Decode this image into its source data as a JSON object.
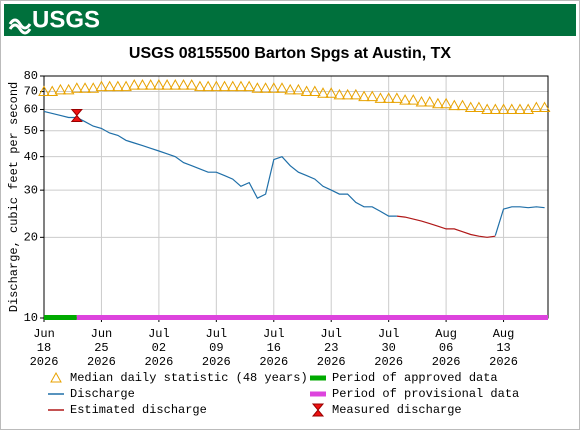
{
  "logo": "USGS",
  "chart_data": {
    "type": "line",
    "title": "USGS 08155500 Barton Spgs at Austin, TX",
    "y_label": "Discharge, cubic feet per second",
    "log_y": true,
    "grid": true,
    "ylim": [
      10,
      80
    ],
    "yticks": [
      10,
      20,
      30,
      40,
      50,
      60,
      70,
      80
    ],
    "xlim": [
      "2026-06-18",
      "2026-08-18T10:00"
    ],
    "xticks": [
      {
        "value": "2026-06-18",
        "label": "Jun 18 2026"
      },
      {
        "value": "2026-06-25",
        "label": "Jun 25 2026"
      },
      {
        "value": "2026-07-02",
        "label": "Jul 02 2026"
      },
      {
        "value": "2026-07-09",
        "label": "Jul 09 2026"
      },
      {
        "value": "2026-07-16",
        "label": "Jul 16 2026"
      },
      {
        "value": "2026-07-23",
        "label": "Jul 23 2026"
      },
      {
        "value": "2026-07-30",
        "label": "Jul 30 2026"
      },
      {
        "value": "2026-08-06",
        "label": "Aug 06 2026"
      },
      {
        "value": "2026-08-13",
        "label": "Aug 13 2026"
      }
    ],
    "x": [
      "2026-06-18",
      "2026-06-19",
      "2026-06-20",
      "2026-06-21",
      "2026-06-22",
      "2026-06-23",
      "2026-06-24",
      "2026-06-25",
      "2026-06-26",
      "2026-06-27",
      "2026-06-28",
      "2026-06-29",
      "2026-06-30",
      "2026-07-01",
      "2026-07-02",
      "2026-07-03",
      "2026-07-04",
      "2026-07-05",
      "2026-07-06",
      "2026-07-07",
      "2026-07-08",
      "2026-07-09",
      "2026-07-10",
      "2026-07-11",
      "2026-07-12",
      "2026-07-13",
      "2026-07-14",
      "2026-07-15",
      "2026-07-16",
      "2026-07-17",
      "2026-07-18",
      "2026-07-19",
      "2026-07-20",
      "2026-07-21",
      "2026-07-22",
      "2026-07-23",
      "2026-07-24",
      "2026-07-25",
      "2026-07-26",
      "2026-07-27",
      "2026-07-28",
      "2026-07-29",
      "2026-07-30",
      "2026-07-31",
      "2026-08-01",
      "2026-08-02",
      "2026-08-03",
      "2026-08-04",
      "2026-08-05",
      "2026-08-06",
      "2026-08-07",
      "2026-08-08",
      "2026-08-09",
      "2026-08-10",
      "2026-08-11",
      "2026-08-12",
      "2026-08-13",
      "2026-08-14",
      "2026-08-15",
      "2026-08-16",
      "2026-08-17",
      "2026-08-18"
    ],
    "series": [
      {
        "name": "Median daily statistic (48 years)",
        "color": "#e8a200",
        "marker": "triangle",
        "values": [
          70,
          70,
          71,
          71,
          72,
          72,
          72,
          73,
          73,
          73,
          73,
          74,
          74,
          74,
          74,
          74,
          74,
          74,
          74,
          73,
          73,
          73,
          73,
          73,
          73,
          73,
          72,
          72,
          72,
          72,
          71,
          71,
          70,
          70,
          69,
          69,
          68,
          68,
          68,
          67,
          67,
          66,
          66,
          66,
          65,
          65,
          64,
          64,
          63,
          63,
          62,
          62,
          61,
          61,
          60,
          60,
          60,
          60,
          60,
          60,
          61,
          61
        ]
      },
      {
        "name": "Discharge",
        "color": "#1f6fa8",
        "marker": "line",
        "values": [
          59,
          58,
          57,
          56,
          56,
          54,
          52,
          51,
          49,
          48,
          46,
          45,
          44,
          43,
          42,
          41,
          40,
          38,
          37,
          36,
          35,
          35,
          34,
          33,
          31,
          32,
          28,
          29,
          39,
          40,
          37,
          35,
          34,
          33,
          31,
          30,
          29,
          29,
          27,
          26,
          26,
          25,
          24,
          24,
          null,
          null,
          null,
          null,
          null,
          null,
          null,
          null,
          null,
          null,
          null,
          20.3,
          25.5,
          26,
          26,
          25.8,
          26,
          25.8
        ]
      },
      {
        "name": "Estimated discharge",
        "color": "#b01818",
        "marker": "line",
        "values": [
          null,
          null,
          null,
          null,
          null,
          null,
          null,
          null,
          null,
          null,
          null,
          null,
          null,
          null,
          null,
          null,
          null,
          null,
          null,
          null,
          null,
          null,
          null,
          null,
          null,
          null,
          null,
          null,
          null,
          null,
          null,
          null,
          null,
          null,
          null,
          null,
          null,
          null,
          null,
          null,
          null,
          null,
          null,
          24,
          23.8,
          23.4,
          23,
          22.5,
          22,
          21.5,
          21.5,
          21,
          20.5,
          20.2,
          20,
          20.2,
          null,
          null,
          null,
          null,
          null,
          null
        ]
      },
      {
        "name": "Measured discharge",
        "color": "#ee1111",
        "marker": "bowtie",
        "x": [
          "2026-06-22"
        ],
        "values": [
          57
        ]
      }
    ],
    "periods": [
      {
        "name": "Period of approved data",
        "color": "#00aa00",
        "start": "2026-06-18",
        "end": "2026-06-22"
      },
      {
        "name": "Period of provisional data",
        "color": "#dd44dd",
        "start": "2026-06-22",
        "end": "2026-08-18T10:00"
      }
    ]
  }
}
